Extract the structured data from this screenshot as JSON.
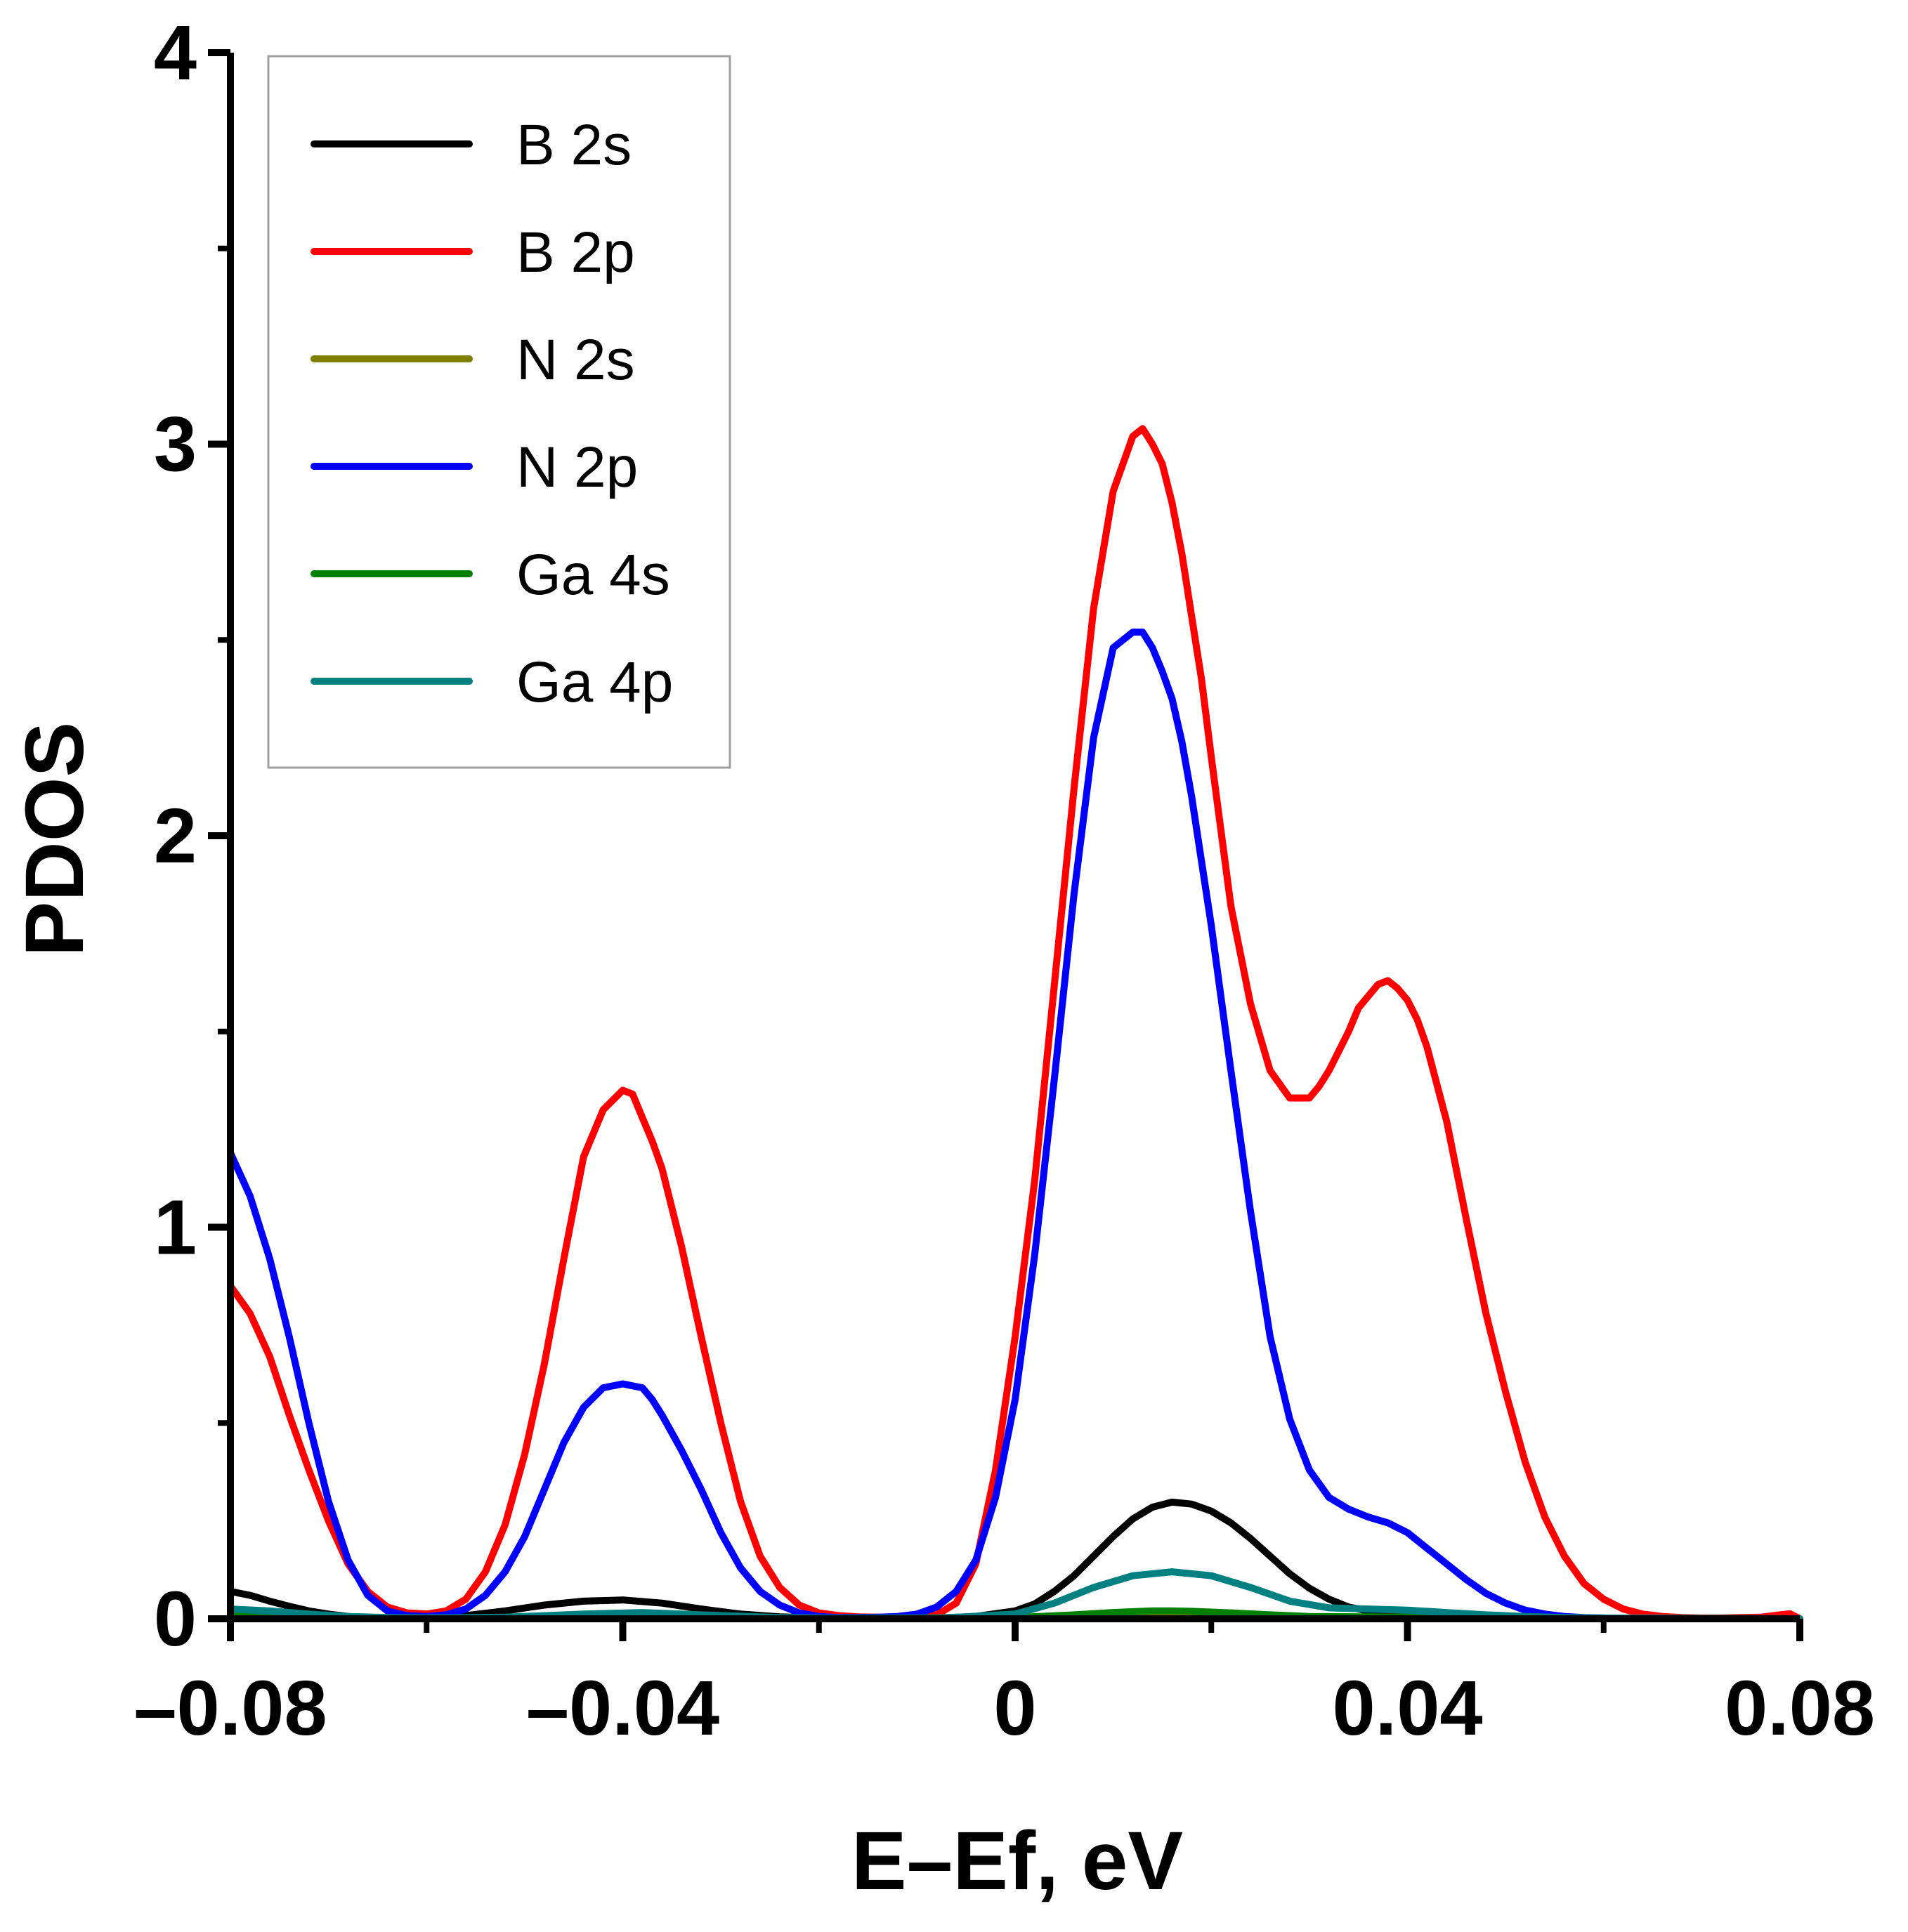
{
  "chart_data": {
    "type": "line",
    "title": "",
    "xlabel": "E–Ef, eV",
    "ylabel": "PDOS",
    "xlim": [
      -0.08,
      0.08
    ],
    "ylim": [
      0,
      4
    ],
    "x_ticks": [
      -0.08,
      -0.04,
      0,
      0.04,
      0.08
    ],
    "x_tick_labels": [
      "–0.08",
      "–0.04",
      "0",
      "0.04",
      "0.08"
    ],
    "y_ticks": [
      0,
      1,
      2,
      3,
      4
    ],
    "y_tick_labels": [
      "0",
      "1",
      "2",
      "3",
      "4"
    ],
    "y_minor_ticks": [
      0.5,
      1.5,
      2.5,
      3.5
    ],
    "x_minor_ticks": [
      -0.06,
      -0.02,
      0.02,
      0.06
    ],
    "grid": false,
    "legend_position": "top-left",
    "series": [
      {
        "name": "B 2s",
        "color": "#000000",
        "x": [
          -0.08,
          -0.078,
          -0.076,
          -0.074,
          -0.072,
          -0.07,
          -0.068,
          -0.066,
          -0.064,
          -0.062,
          -0.06,
          -0.056,
          -0.052,
          -0.048,
          -0.044,
          -0.04,
          -0.036,
          -0.032,
          -0.028,
          -0.024,
          -0.02,
          -0.016,
          -0.012,
          -0.008,
          -0.004,
          0,
          0.002,
          0.004,
          0.006,
          0.008,
          0.01,
          0.012,
          0.014,
          0.016,
          0.018,
          0.02,
          0.022,
          0.024,
          0.026,
          0.028,
          0.03,
          0.032,
          0.034,
          0.036,
          0.04,
          0.044,
          0.048,
          0.052,
          0.056,
          0.06,
          0.064,
          0.068,
          0.072,
          0.076,
          0.08
        ],
        "y": [
          0.07,
          0.06,
          0.045,
          0.032,
          0.02,
          0.012,
          0.006,
          0.003,
          0.002,
          0.002,
          0.003,
          0.008,
          0.02,
          0.035,
          0.045,
          0.048,
          0.04,
          0.025,
          0.012,
          0.005,
          0.002,
          0.001,
          0.001,
          0.002,
          0.006,
          0.02,
          0.038,
          0.07,
          0.11,
          0.16,
          0.21,
          0.255,
          0.285,
          0.298,
          0.293,
          0.275,
          0.245,
          0.205,
          0.16,
          0.115,
          0.078,
          0.05,
          0.03,
          0.02,
          0.012,
          0.008,
          0.005,
          0.003,
          0.002,
          0.001,
          0.001,
          0.0,
          0.0,
          0.0,
          0.0
        ]
      },
      {
        "name": "B 2p",
        "color": "#ff0000",
        "x": [
          -0.08,
          -0.078,
          -0.076,
          -0.074,
          -0.072,
          -0.07,
          -0.068,
          -0.066,
          -0.064,
          -0.062,
          -0.06,
          -0.058,
          -0.056,
          -0.054,
          -0.052,
          -0.05,
          -0.048,
          -0.046,
          -0.044,
          -0.042,
          -0.04,
          -0.039,
          -0.038,
          -0.037,
          -0.036,
          -0.035,
          -0.034,
          -0.032,
          -0.03,
          -0.028,
          -0.026,
          -0.024,
          -0.022,
          -0.02,
          -0.018,
          -0.016,
          -0.014,
          -0.012,
          -0.01,
          -0.008,
          -0.006,
          -0.004,
          -0.002,
          0,
          0.002,
          0.004,
          0.006,
          0.008,
          0.01,
          0.012,
          0.013,
          0.014,
          0.015,
          0.016,
          0.017,
          0.018,
          0.019,
          0.02,
          0.022,
          0.024,
          0.026,
          0.028,
          0.03,
          0.031,
          0.032,
          0.033,
          0.034,
          0.035,
          0.036,
          0.037,
          0.038,
          0.039,
          0.04,
          0.041,
          0.042,
          0.044,
          0.046,
          0.048,
          0.05,
          0.052,
          0.054,
          0.056,
          0.058,
          0.06,
          0.062,
          0.064,
          0.066,
          0.068,
          0.07,
          0.072,
          0.074,
          0.076,
          0.078,
          0.079,
          0.08
        ],
        "y": [
          0.85,
          0.78,
          0.67,
          0.52,
          0.38,
          0.25,
          0.14,
          0.07,
          0.03,
          0.015,
          0.012,
          0.02,
          0.05,
          0.12,
          0.24,
          0.42,
          0.65,
          0.92,
          1.18,
          1.3,
          1.35,
          1.34,
          1.28,
          1.22,
          1.15,
          1.05,
          0.95,
          0.72,
          0.5,
          0.3,
          0.16,
          0.08,
          0.035,
          0.015,
          0.008,
          0.005,
          0.004,
          0.004,
          0.005,
          0.01,
          0.04,
          0.14,
          0.38,
          0.72,
          1.12,
          1.62,
          2.12,
          2.58,
          2.88,
          3.02,
          3.04,
          3.0,
          2.95,
          2.85,
          2.72,
          2.56,
          2.4,
          2.2,
          1.82,
          1.57,
          1.4,
          1.33,
          1.33,
          1.36,
          1.4,
          1.45,
          1.5,
          1.56,
          1.59,
          1.62,
          1.63,
          1.61,
          1.58,
          1.53,
          1.46,
          1.27,
          1.02,
          0.78,
          0.58,
          0.4,
          0.26,
          0.16,
          0.09,
          0.05,
          0.025,
          0.012,
          0.006,
          0.003,
          0.002,
          0.002,
          0.003,
          0.004,
          0.01,
          0.013,
          0.0
        ]
      },
      {
        "name": "N 2s",
        "color": "#808000",
        "x": [
          -0.08,
          -0.06,
          -0.04,
          -0.02,
          0,
          0.008,
          0.012,
          0.016,
          0.02,
          0.024,
          0.03,
          0.04,
          0.06,
          0.08
        ],
        "y": [
          0.004,
          0.001,
          0.003,
          0.001,
          0.002,
          0.006,
          0.009,
          0.01,
          0.009,
          0.006,
          0.003,
          0.002,
          0.001,
          0.0
        ]
      },
      {
        "name": "N 2p",
        "color": "#0000ff",
        "x": [
          -0.08,
          -0.078,
          -0.076,
          -0.074,
          -0.072,
          -0.07,
          -0.068,
          -0.066,
          -0.064,
          -0.062,
          -0.06,
          -0.058,
          -0.056,
          -0.054,
          -0.052,
          -0.05,
          -0.048,
          -0.046,
          -0.044,
          -0.042,
          -0.04,
          -0.038,
          -0.037,
          -0.036,
          -0.034,
          -0.032,
          -0.03,
          -0.028,
          -0.026,
          -0.024,
          -0.022,
          -0.02,
          -0.018,
          -0.016,
          -0.014,
          -0.012,
          -0.01,
          -0.008,
          -0.006,
          -0.004,
          -0.002,
          0,
          0.002,
          0.004,
          0.006,
          0.008,
          0.01,
          0.012,
          0.013,
          0.014,
          0.015,
          0.016,
          0.017,
          0.018,
          0.02,
          0.022,
          0.024,
          0.026,
          0.028,
          0.03,
          0.032,
          0.034,
          0.036,
          0.038,
          0.04,
          0.042,
          0.044,
          0.046,
          0.048,
          0.05,
          0.052,
          0.054,
          0.056,
          0.058,
          0.06,
          0.062,
          0.064,
          0.068,
          0.072,
          0.076,
          0.08
        ],
        "y": [
          1.19,
          1.08,
          0.92,
          0.72,
          0.5,
          0.3,
          0.15,
          0.06,
          0.02,
          0.008,
          0.006,
          0.01,
          0.025,
          0.06,
          0.12,
          0.21,
          0.33,
          0.45,
          0.54,
          0.59,
          0.6,
          0.59,
          0.56,
          0.52,
          0.43,
          0.33,
          0.22,
          0.13,
          0.07,
          0.035,
          0.015,
          0.006,
          0.003,
          0.003,
          0.004,
          0.006,
          0.012,
          0.03,
          0.07,
          0.15,
          0.31,
          0.56,
          0.93,
          1.38,
          1.85,
          2.25,
          2.48,
          2.52,
          2.52,
          2.48,
          2.42,
          2.35,
          2.24,
          2.1,
          1.77,
          1.4,
          1.04,
          0.72,
          0.51,
          0.38,
          0.31,
          0.28,
          0.26,
          0.245,
          0.22,
          0.18,
          0.14,
          0.1,
          0.065,
          0.04,
          0.022,
          0.012,
          0.006,
          0.003,
          0.002,
          0.001,
          0.001,
          0.0,
          0.0,
          0.0,
          0.0
        ]
      },
      {
        "name": "Ga 4s",
        "color": "#008000",
        "x": [
          -0.08,
          -0.07,
          -0.06,
          -0.04,
          -0.02,
          0,
          0.006,
          0.01,
          0.014,
          0.016,
          0.018,
          0.022,
          0.026,
          0.03,
          0.04,
          0.05,
          0.06,
          0.08
        ],
        "y": [
          0.01,
          0.004,
          0.002,
          0.005,
          0.001,
          0.003,
          0.01,
          0.016,
          0.02,
          0.02,
          0.019,
          0.015,
          0.01,
          0.006,
          0.004,
          0.003,
          0.001,
          0.0
        ]
      },
      {
        "name": "Ga 4p",
        "color": "#008080",
        "x": [
          -0.08,
          -0.076,
          -0.072,
          -0.068,
          -0.064,
          -0.06,
          -0.052,
          -0.044,
          -0.038,
          -0.032,
          -0.024,
          -0.016,
          -0.008,
          0,
          0.004,
          0.008,
          0.012,
          0.016,
          0.02,
          0.024,
          0.028,
          0.032,
          0.036,
          0.04,
          0.044,
          0.048,
          0.052,
          0.056,
          0.06,
          0.07,
          0.08
        ],
        "y": [
          0.025,
          0.02,
          0.012,
          0.006,
          0.003,
          0.002,
          0.004,
          0.012,
          0.016,
          0.01,
          0.003,
          0.001,
          0.001,
          0.012,
          0.04,
          0.08,
          0.11,
          0.12,
          0.11,
          0.08,
          0.045,
          0.028,
          0.025,
          0.022,
          0.016,
          0.01,
          0.006,
          0.003,
          0.002,
          0.001,
          0.0
        ]
      }
    ]
  }
}
